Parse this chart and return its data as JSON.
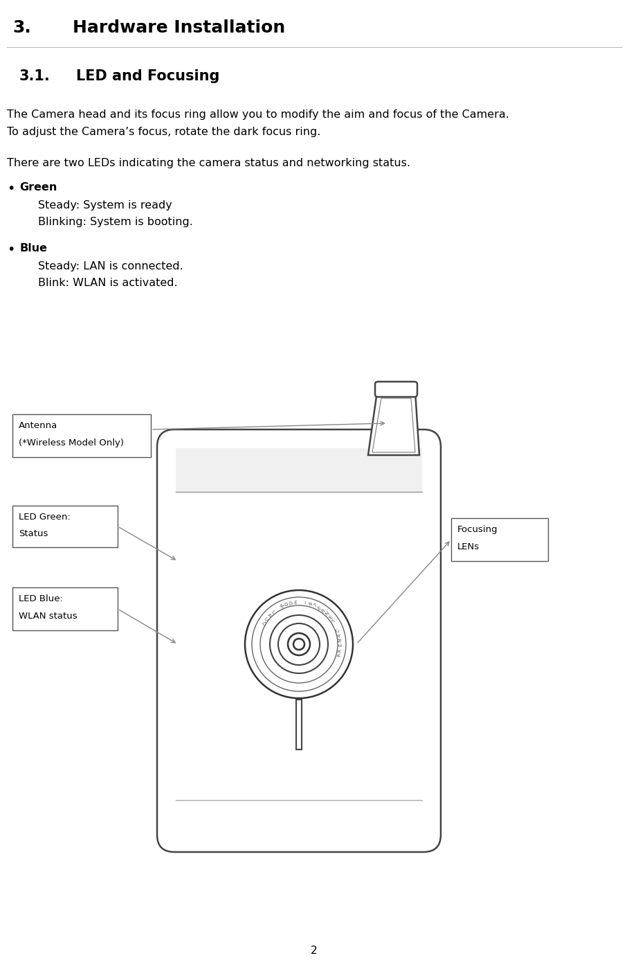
{
  "title1": "3.",
  "title1_text": "Hardware Installation",
  "title2": "3.1.",
  "title2_text": "LED and Focusing",
  "para1_line1": "The Camera head and its focus ring allow you to modify the aim and focus of the Camera.",
  "para1_line2": "To adjust the Camera’s focus, rotate the dark focus ring.",
  "para2": "There are two LEDs indicating the camera status and networking status.",
  "bullet1_label": "Green",
  "bullet1_line1": "Steady: System is ready",
  "bullet1_line2": "Blinking: System is booting.",
  "bullet2_label": "Blue",
  "bullet2_line1": "Steady: LAN is connected.",
  "bullet2_line2": "Blink: WLAN is activated.",
  "label_antenna": "Antenna\n(*Wireless Model Only)",
  "label_led_green": "LED Green:\nStatus",
  "label_led_blue": "LED Blue:\nWLAN status",
  "label_focusing": "Focusing\nLENs",
  "page_number": "2",
  "bg_color": "#ffffff",
  "text_color": "#000000"
}
